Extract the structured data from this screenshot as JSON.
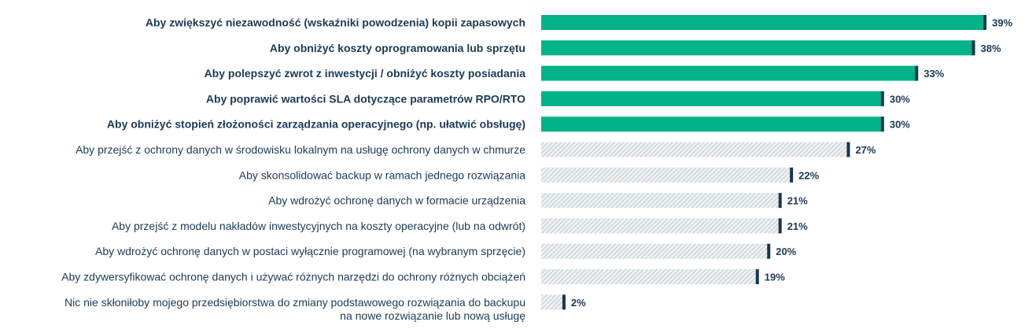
{
  "chart_data": {
    "type": "bar",
    "orientation": "horizontal",
    "categories": [
      "Aby zwiększyć niezawodność (wskaźniki powodzenia) kopii zapasowych",
      "Aby obniżyć koszty oprogramowania lub sprzętu",
      "Aby polepszyć zwrot z inwestycji / obniżyć koszty posiadania",
      "Aby poprawić wartości SLA dotyczące parametrów RPO/RTO",
      "Aby obniżyć stopień złożoności zarządzania operacyjnego (np. ułatwić obsługę)",
      "Aby przejść z ochrony danych w środowisku lokalnym na usługę ochrony danych w chmurze",
      "Aby skonsolidować backup w ramach jednego rozwiązania",
      "Aby wdrożyć ochronę danych w formacie urządzenia",
      "Aby przejść z modelu nakładów inwestycyjnych na koszty operacyjne (lub na odwrót)",
      "Aby wdrożyć ochronę danych w postaci wyłącznie programowej (na wybranym sprzęcie)",
      "Aby zdywersyfikować ochronę danych i używać różnych narzędzi do ochrony różnych obciążeń",
      "Nic nie skłoniłoby mojego przedsiębiorstwa do zmiany podstawowego rozwiązania do backupu na nowe rozwiązanie lub nową usługę"
    ],
    "category_lines": [
      [
        "Aby zwiększyć niezawodność (wskaźniki powodzenia) kopii zapasowych"
      ],
      [
        "Aby obniżyć koszty oprogramowania lub sprzętu"
      ],
      [
        "Aby polepszyć zwrot z inwestycji / obniżyć koszty posiadania"
      ],
      [
        "Aby poprawić wartości SLA dotyczące parametrów RPO/RTO"
      ],
      [
        "Aby obniżyć stopień złożoności zarządzania operacyjnego (np. ułatwić obsługę)"
      ],
      [
        "Aby przejść z ochrony danych w środowisku lokalnym na usługę ochrony danych w chmurze"
      ],
      [
        "Aby skonsolidować backup w ramach jednego rozwiązania"
      ],
      [
        "Aby wdrożyć ochronę danych w formacie urządzenia"
      ],
      [
        "Aby przejść z modelu nakładów inwestycyjnych na koszty operacyjne (lub na odwrót)"
      ],
      [
        "Aby wdrożyć ochronę danych w postaci wyłącznie programowej (na wybranym sprzęcie)"
      ],
      [
        "Aby zdywersyfikować ochronę danych i używać różnych narzędzi do ochrony różnych obciążeń"
      ],
      [
        "Nic nie skłoniłoby mojego przedsiębiorstwa do zmiany podstawowego rozwiązania do backupu",
        "na nowe rozwiązanie lub nową usługę"
      ]
    ],
    "values": [
      39,
      38,
      33,
      30,
      30,
      27,
      22,
      21,
      21,
      20,
      19,
      2
    ],
    "value_labels": [
      "39%",
      "38%",
      "33%",
      "30%",
      "30%",
      "27%",
      "22%",
      "21%",
      "21%",
      "20%",
      "19%",
      "2%"
    ],
    "highlighted": [
      true,
      true,
      true,
      true,
      true,
      false,
      false,
      false,
      false,
      false,
      false,
      false
    ],
    "xlim": [
      0,
      39
    ],
    "grid": false,
    "legend": "none",
    "title": "",
    "xlabel": "",
    "ylabel": "",
    "colors": {
      "highlight_fill": "#00b388",
      "hatch_stroke": "#b9c3c8",
      "hatch_background": "#edf1f2",
      "end_marker": "#17364f",
      "label_text": "#1b3a57"
    }
  }
}
